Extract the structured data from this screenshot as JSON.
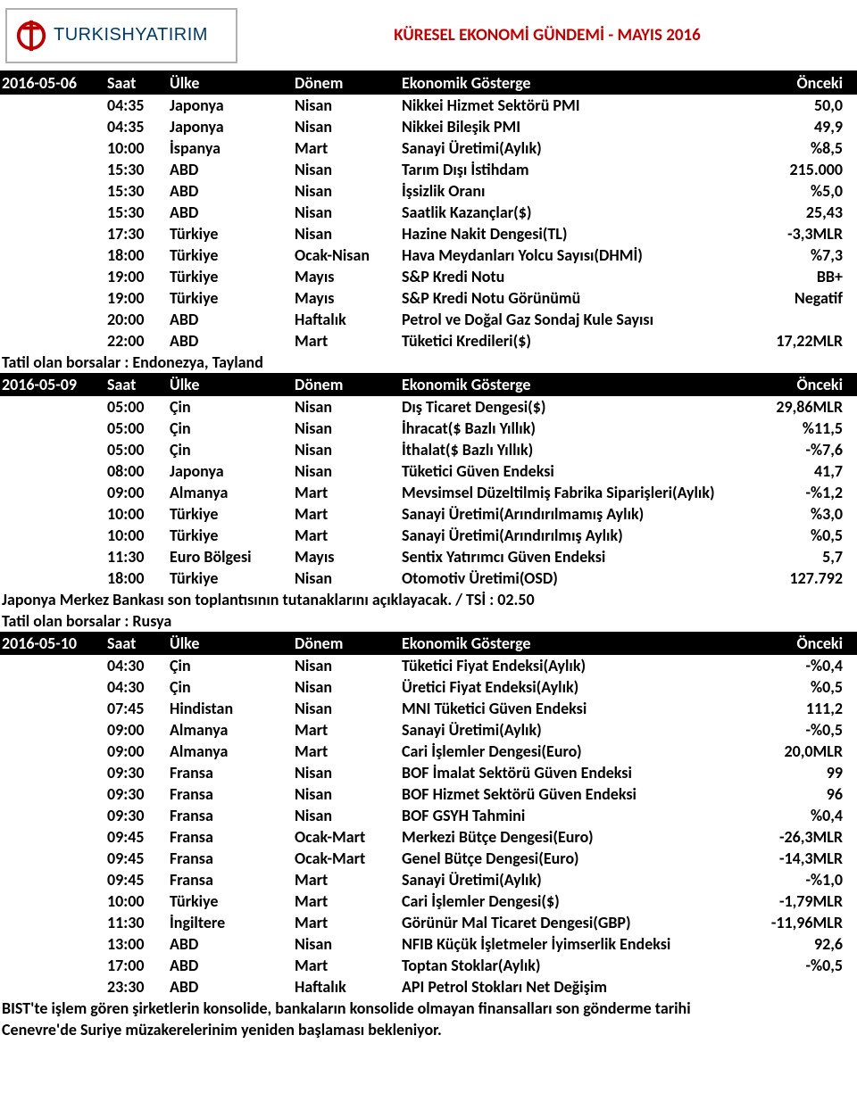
{
  "logo": {
    "text1": "TURKISH",
    "text2": "YATIRIM",
    "ring_color": "#c00000",
    "brand_color": "#003a6b"
  },
  "title": "KÜRESEL EKONOMİ GÜNDEMİ  -  MAYIS 2016",
  "columns": {
    "time": "Saat",
    "country": "Ülke",
    "period": "Dönem",
    "indicator": "Ekonomik Gösterge",
    "prev": "Önceki"
  },
  "sections": [
    {
      "date": "2016-05-06",
      "rows": [
        {
          "time": "04:35",
          "country": "Japonya",
          "period": "Nisan",
          "indicator": "Nikkei Hizmet Sektörü PMI",
          "prev": "50,0"
        },
        {
          "time": "04:35",
          "country": "Japonya",
          "period": "Nisan",
          "indicator": "Nikkei Bileşik PMI",
          "prev": "49,9"
        },
        {
          "time": "10:00",
          "country": "İspanya",
          "period": "Mart",
          "indicator": "Sanayi Üretimi(Aylık)",
          "prev": "%8,5"
        },
        {
          "time": "15:30",
          "country": "ABD",
          "period": "Nisan",
          "indicator": "Tarım Dışı İstihdam",
          "prev": "215.000"
        },
        {
          "time": "15:30",
          "country": "ABD",
          "period": "Nisan",
          "indicator": "İşsizlik Oranı",
          "prev": "%5,0"
        },
        {
          "time": "15:30",
          "country": "ABD",
          "period": "Nisan",
          "indicator": "Saatlik Kazançlar($)",
          "prev": "25,43"
        },
        {
          "time": "17:30",
          "country": "Türkiye",
          "period": "Nisan",
          "indicator": "Hazine Nakit Dengesi(TL)",
          "prev": "-3,3MLR"
        },
        {
          "time": "18:00",
          "country": "Türkiye",
          "period": "Ocak-Nisan",
          "indicator": "Hava Meydanları Yolcu Sayısı(DHMİ)",
          "prev": "%7,3"
        },
        {
          "time": "19:00",
          "country": "Türkiye",
          "period": "Mayıs",
          "indicator": "S&P Kredi Notu",
          "prev": "BB+"
        },
        {
          "time": "19:00",
          "country": "Türkiye",
          "period": "Mayıs",
          "indicator": "S&P Kredi Notu Görünümü",
          "prev": "Negatif"
        },
        {
          "time": "20:00",
          "country": "ABD",
          "period": "Haftalık",
          "indicator": "Petrol ve Doğal Gaz Sondaj Kule Sayısı",
          "prev": ""
        },
        {
          "time": "22:00",
          "country": "ABD",
          "period": "Mart",
          "indicator": "Tüketici Kredileri($)",
          "prev": "17,22MLR"
        }
      ],
      "notes": [
        "Tatil olan borsalar : Endonezya, Tayland"
      ]
    },
    {
      "date": "2016-05-09",
      "rows": [
        {
          "time": "05:00",
          "country": "Çin",
          "period": "Nisan",
          "indicator": "Dış Ticaret Dengesi($)",
          "prev": "29,86MLR"
        },
        {
          "time": "05:00",
          "country": "Çin",
          "period": "Nisan",
          "indicator": "İhracat($ Bazlı Yıllık)",
          "prev": "%11,5"
        },
        {
          "time": "05:00",
          "country": "Çin",
          "period": "Nisan",
          "indicator": "İthalat($ Bazlı Yıllık)",
          "prev": "-%7,6"
        },
        {
          "time": "08:00",
          "country": "Japonya",
          "period": "Nisan",
          "indicator": "Tüketici Güven Endeksi",
          "prev": "41,7"
        },
        {
          "time": "09:00",
          "country": "Almanya",
          "period": "Mart",
          "indicator": "Mevsimsel Düzeltilmiş Fabrika Siparişleri(Aylık)",
          "prev": "-%1,2"
        },
        {
          "time": "10:00",
          "country": "Türkiye",
          "period": "Mart",
          "indicator": "Sanayi Üretimi(Arındırılmamış Aylık)",
          "prev": "%3,0"
        },
        {
          "time": "10:00",
          "country": "Türkiye",
          "period": "Mart",
          "indicator": "Sanayi Üretimi(Arındırılmış Aylık)",
          "prev": "%0,5"
        },
        {
          "time": "11:30",
          "country": "Euro Bölgesi",
          "period": "Mayıs",
          "indicator": "Sentix Yatırımcı Güven Endeksi",
          "prev": "5,7"
        },
        {
          "time": "18:00",
          "country": "Türkiye",
          "period": "Nisan",
          "indicator": "Otomotiv Üretimi(OSD)",
          "prev": "127.792"
        }
      ],
      "notes": [
        "Japonya Merkez Bankası son toplantısının tutanaklarını açıklayacak. / TSİ : 02.50",
        "Tatil olan borsalar : Rusya"
      ]
    },
    {
      "date": "2016-05-10",
      "rows": [
        {
          "time": "04:30",
          "country": "Çin",
          "period": "Nisan",
          "indicator": "Tüketici Fiyat Endeksi(Aylık)",
          "prev": "-%0,4"
        },
        {
          "time": "04:30",
          "country": "Çin",
          "period": "Nisan",
          "indicator": "Üretici Fiyat Endeksi(Aylık)",
          "prev": "%0,5"
        },
        {
          "time": "07:45",
          "country": "Hindistan",
          "period": "Nisan",
          "indicator": "MNI Tüketici Güven Endeksi",
          "prev": "111,2"
        },
        {
          "time": "09:00",
          "country": "Almanya",
          "period": "Mart",
          "indicator": "Sanayi Üretimi(Aylık)",
          "prev": "-%0,5"
        },
        {
          "time": "09:00",
          "country": "Almanya",
          "period": "Mart",
          "indicator": "Cari İşlemler Dengesi(Euro)",
          "prev": "20,0MLR"
        },
        {
          "time": "09:30",
          "country": "Fransa",
          "period": "Nisan",
          "indicator": "BOF İmalat Sektörü Güven Endeksi",
          "prev": "99"
        },
        {
          "time": "09:30",
          "country": "Fransa",
          "period": "Nisan",
          "indicator": "BOF Hizmet Sektörü Güven Endeksi",
          "prev": "96"
        },
        {
          "time": "09:30",
          "country": "Fransa",
          "period": "Nisan",
          "indicator": "BOF GSYH Tahmini",
          "prev": "%0,4"
        },
        {
          "time": "09:45",
          "country": "Fransa",
          "period": "Ocak-Mart",
          "indicator": "Merkezi Bütçe Dengesi(Euro)",
          "prev": "-26,3MLR"
        },
        {
          "time": "09:45",
          "country": "Fransa",
          "period": "Ocak-Mart",
          "indicator": "Genel Bütçe Dengesi(Euro)",
          "prev": "-14,3MLR"
        },
        {
          "time": "09:45",
          "country": "Fransa",
          "period": "Mart",
          "indicator": "Sanayi Üretimi(Aylık)",
          "prev": "-%1,0"
        },
        {
          "time": "10:00",
          "country": "Türkiye",
          "period": "Mart",
          "indicator": "Cari İşlemler Dengesi($)",
          "prev": "-1,79MLR"
        },
        {
          "time": "11:30",
          "country": "İngiltere",
          "period": "Mart",
          "indicator": "Görünür Mal Ticaret Dengesi(GBP)",
          "prev": "-11,96MLR"
        },
        {
          "time": "13:00",
          "country": "ABD",
          "period": "Nisan",
          "indicator": "NFIB Küçük İşletmeler İyimserlik Endeksi",
          "prev": "92,6"
        },
        {
          "time": "17:00",
          "country": "ABD",
          "period": "Mart",
          "indicator": "Toptan Stoklar(Aylık)",
          "prev": "-%0,5"
        },
        {
          "time": "23:30",
          "country": "ABD",
          "period": "Haftalık",
          "indicator": "API Petrol Stokları Net Değişim",
          "prev": ""
        }
      ],
      "notes": [
        "BIST'te işlem gören şirketlerin  konsolide, bankaların konsolide olmayan finansalları son gönderme tarihi",
        "Cenevre'de Suriye müzakerelerinim yeniden başlaması bekleniyor."
      ]
    }
  ]
}
